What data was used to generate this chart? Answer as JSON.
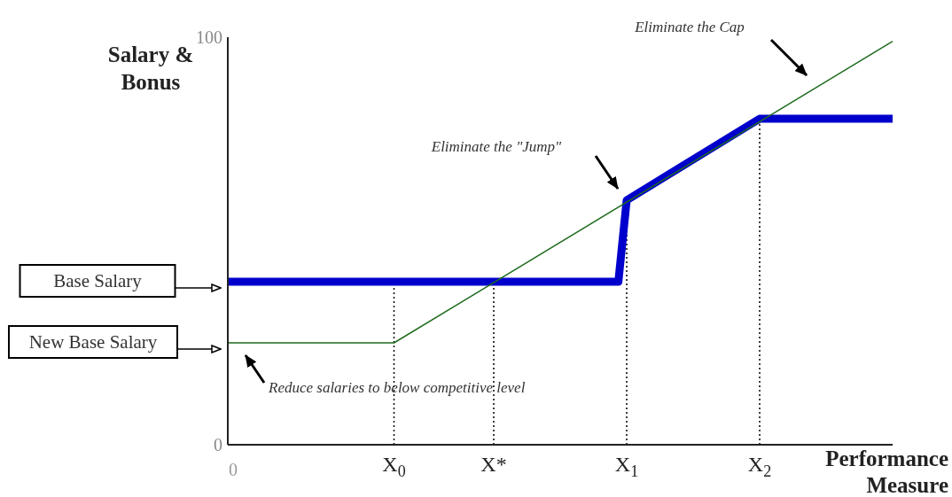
{
  "chart_data": {
    "type": "line",
    "ylabel": "Salary & Bonus",
    "xlabel": "Performance Measure",
    "ylim": [
      0,
      100
    ],
    "yticks": [
      0,
      100
    ],
    "categories": [
      "0",
      null,
      null,
      null,
      null,
      null,
      null,
      null,
      null,
      null,
      null,
      null,
      null,
      null,
      null,
      null,
      null,
      null,
      null,
      null,
      "X$_{0}$",
      null,
      null,
      null,
      null,
      null,
      null,
      null,
      null,
      null,
      null,
      null,
      "X*",
      null,
      null,
      null,
      null,
      null,
      null,
      null,
      null,
      null,
      null,
      null,
      null,
      null,
      null,
      null,
      "X$_{1}$",
      null,
      null,
      null,
      null,
      null,
      null,
      null,
      null,
      null,
      null,
      null,
      null,
      null,
      null,
      null,
      "X$_{2}$",
      null,
      null,
      null,
      null,
      null,
      null,
      null,
      null,
      null,
      null,
      null,
      null,
      null,
      null,
      null,
      null
    ],
    "series": [
      {
        "color": "#0000cc",
        "values": [
          40,
          null,
          null,
          null,
          null,
          null,
          null,
          null,
          null,
          null,
          null,
          null,
          null,
          null,
          null,
          null,
          null,
          null,
          null,
          null,
          null,
          null,
          null,
          null,
          null,
          null,
          null,
          null,
          null,
          null,
          null,
          null,
          null,
          null,
          null,
          null,
          null,
          null,
          null,
          null,
          null,
          null,
          null,
          null,
          null,
          null,
          null,
          40,
          60,
          null,
          null,
          null,
          null,
          null,
          null,
          null,
          null,
          null,
          null,
          null,
          null,
          null,
          null,
          null,
          80,
          null,
          null,
          null,
          null,
          null,
          null,
          null,
          null,
          null,
          null,
          null,
          null,
          null,
          null,
          null,
          80
        ]
      },
      {
        "color": "#1e6b1e",
        "values": [
          25,
          null,
          null,
          null,
          null,
          null,
          null,
          null,
          null,
          null,
          null,
          null,
          null,
          null,
          null,
          null,
          null,
          null,
          null,
          null,
          25,
          null,
          null,
          null,
          null,
          null,
          null,
          null,
          null,
          null,
          null,
          null,
          null,
          null,
          null,
          null,
          null,
          null,
          null,
          null,
          null,
          null,
          null,
          null,
          null,
          null,
          null,
          null,
          null,
          null,
          null,
          null,
          null,
          null,
          null,
          null,
          null,
          null,
          null,
          null,
          null,
          null,
          null,
          null,
          null,
          null,
          null,
          null,
          null,
          null,
          null,
          null,
          null,
          null,
          null,
          null,
          null,
          null,
          null,
          null,
          99
        ]
      }
    ],
    "ref_lines": [
      {
        "axis": "x",
        "value": "X$_{0}$",
        "line_style": "dotted"
      },
      {
        "axis": "x",
        "value": "X*",
        "line_style": "dotted"
      },
      {
        "axis": "x",
        "value": "X$_{1}$",
        "line_style": "dotted"
      },
      {
        "axis": "x",
        "value": "X$_{2}$",
        "line_style": "dotted"
      }
    ],
    "annotations": [
      "Base Salary",
      "New Base Salary",
      "Reduce salaries to below competitive level",
      "Eliminate the \"Jump\"",
      "Eliminate the Cap"
    ],
    "marker": "none",
    "line_style": "solid"
  }
}
